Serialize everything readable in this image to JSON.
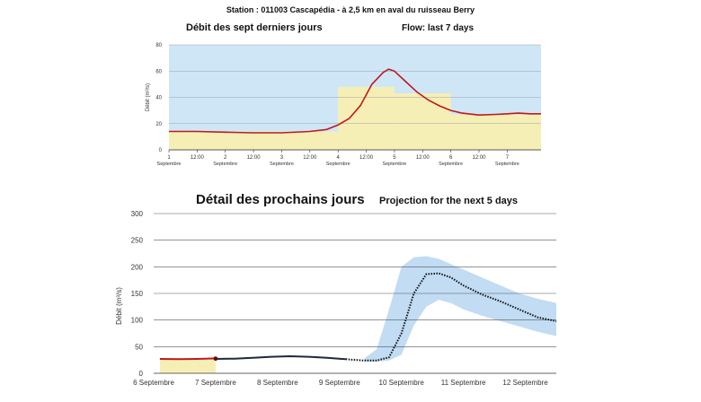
{
  "page_title": "Station : 011003   Cascapédia - à 2,5 km en aval du ruisseau Berry",
  "colors": {
    "plot_bg": "#cfe6f7",
    "bar_fill": "#f6efb5",
    "observed_line": "#c0181d",
    "forecast_line": "#111111",
    "uncertainty_band": "#bad8f2"
  },
  "chart_data": [
    {
      "type": "line",
      "title": "Débit des sept derniers jours",
      "subtitle": "Flow: last 7 days",
      "xlabel": "",
      "ylabel": "Débit (m³/s)",
      "ylim": [
        0,
        80
      ],
      "yticks": [
        "0",
        "20",
        "40",
        "60",
        "80"
      ],
      "xlim": [
        1,
        7.6
      ],
      "grid": true,
      "xticks": [
        {
          "x": 1,
          "label": "1",
          "sub": "Septembre"
        },
        {
          "x": 1.5,
          "label": "12:00",
          "sub": ""
        },
        {
          "x": 2,
          "label": "2",
          "sub": "Septembre"
        },
        {
          "x": 2.5,
          "label": "12:00",
          "sub": ""
        },
        {
          "x": 3,
          "label": "3",
          "sub": "Septembre"
        },
        {
          "x": 3.5,
          "label": "12:00",
          "sub": ""
        },
        {
          "x": 4,
          "label": "4",
          "sub": "Septembre"
        },
        {
          "x": 4.5,
          "label": "12:00",
          "sub": ""
        },
        {
          "x": 5,
          "label": "5",
          "sub": "Septembre"
        },
        {
          "x": 5.5,
          "label": "12:00",
          "sub": ""
        },
        {
          "x": 6,
          "label": "6",
          "sub": "Septembre"
        },
        {
          "x": 6.5,
          "label": "12:00",
          "sub": ""
        },
        {
          "x": 7,
          "label": "7",
          "sub": "Septembre"
        }
      ],
      "daily_bars": [
        {
          "x0": 1,
          "x1": 2,
          "value": 14
        },
        {
          "x0": 2,
          "x1": 3,
          "value": 14
        },
        {
          "x0": 3,
          "x1": 4,
          "value": 14
        },
        {
          "x0": 4,
          "x1": 5,
          "value": 48
        },
        {
          "x0": 5,
          "x1": 6,
          "value": 43
        },
        {
          "x0": 6,
          "x1": 7.6,
          "value": 27
        }
      ],
      "series": [
        {
          "x": [
            1,
            1.5,
            2,
            2.5,
            3,
            3.5,
            3.8,
            4.0,
            4.2,
            4.4,
            4.6,
            4.8,
            4.9,
            5.0,
            5.2,
            5.4,
            5.6,
            5.8,
            6.0,
            6.2,
            6.5,
            6.8,
            7.0,
            7.2,
            7.4,
            7.6
          ],
          "y": [
            14,
            14,
            13.5,
            13,
            13,
            14,
            15.5,
            19,
            24,
            34,
            50,
            59,
            61.5,
            60,
            52,
            44,
            38,
            33.5,
            30,
            28,
            26.5,
            27,
            27.5,
            28,
            27.5,
            27.5
          ]
        }
      ]
    },
    {
      "type": "line",
      "title": "Détail des prochains jours",
      "subtitle": "Projection for the next 5 days",
      "xlabel": "",
      "ylabel": "Débit (m³/s)",
      "ylim": [
        0,
        300
      ],
      "yticks": [
        "0",
        "50",
        "100",
        "150",
        "200",
        "250",
        "300"
      ],
      "xlim": [
        6,
        12.5
      ],
      "grid": true,
      "xticks": [
        {
          "x": 6,
          "label": "6 Septembre"
        },
        {
          "x": 7,
          "label": "7 Septembre"
        },
        {
          "x": 8,
          "label": "8 Septembre"
        },
        {
          "x": 9,
          "label": "9 Septembre"
        },
        {
          "x": 10,
          "label": "10 Septembre"
        },
        {
          "x": 11,
          "label": "11 Septembre"
        },
        {
          "x": 12,
          "label": "12 Septembre"
        }
      ],
      "daily_bars": [
        {
          "x0": 6.1,
          "x1": 7.0,
          "value": 28
        }
      ],
      "observed": {
        "x": [
          6.1,
          6.4,
          6.7,
          7.0
        ],
        "y": [
          27,
          26.5,
          27,
          28
        ]
      },
      "forecast": {
        "x": [
          7.0,
          7.3,
          7.6,
          7.9,
          8.2,
          8.5,
          8.8,
          9.1,
          9.4,
          9.6,
          9.8,
          10.0,
          10.2,
          10.4,
          10.6,
          10.8,
          11.0,
          11.3,
          11.6,
          11.9,
          12.2,
          12.5
        ],
        "y": [
          27,
          27.5,
          29,
          31,
          32,
          31,
          29,
          26.5,
          24,
          24,
          30,
          75,
          150,
          186,
          188,
          180,
          165,
          148,
          135,
          120,
          105,
          98
        ]
      },
      "band": {
        "x": [
          9.4,
          9.6,
          9.8,
          10.0,
          10.2,
          10.4,
          10.6,
          10.8,
          11.0,
          11.3,
          11.6,
          11.9,
          12.2,
          12.5
        ],
        "upper": [
          28,
          45,
          120,
          200,
          218,
          220,
          215,
          205,
          195,
          180,
          165,
          150,
          140,
          132
        ],
        "lower": [
          22,
          22,
          24,
          35,
          90,
          125,
          138,
          132,
          120,
          108,
          98,
          88,
          78,
          70
        ]
      }
    }
  ]
}
